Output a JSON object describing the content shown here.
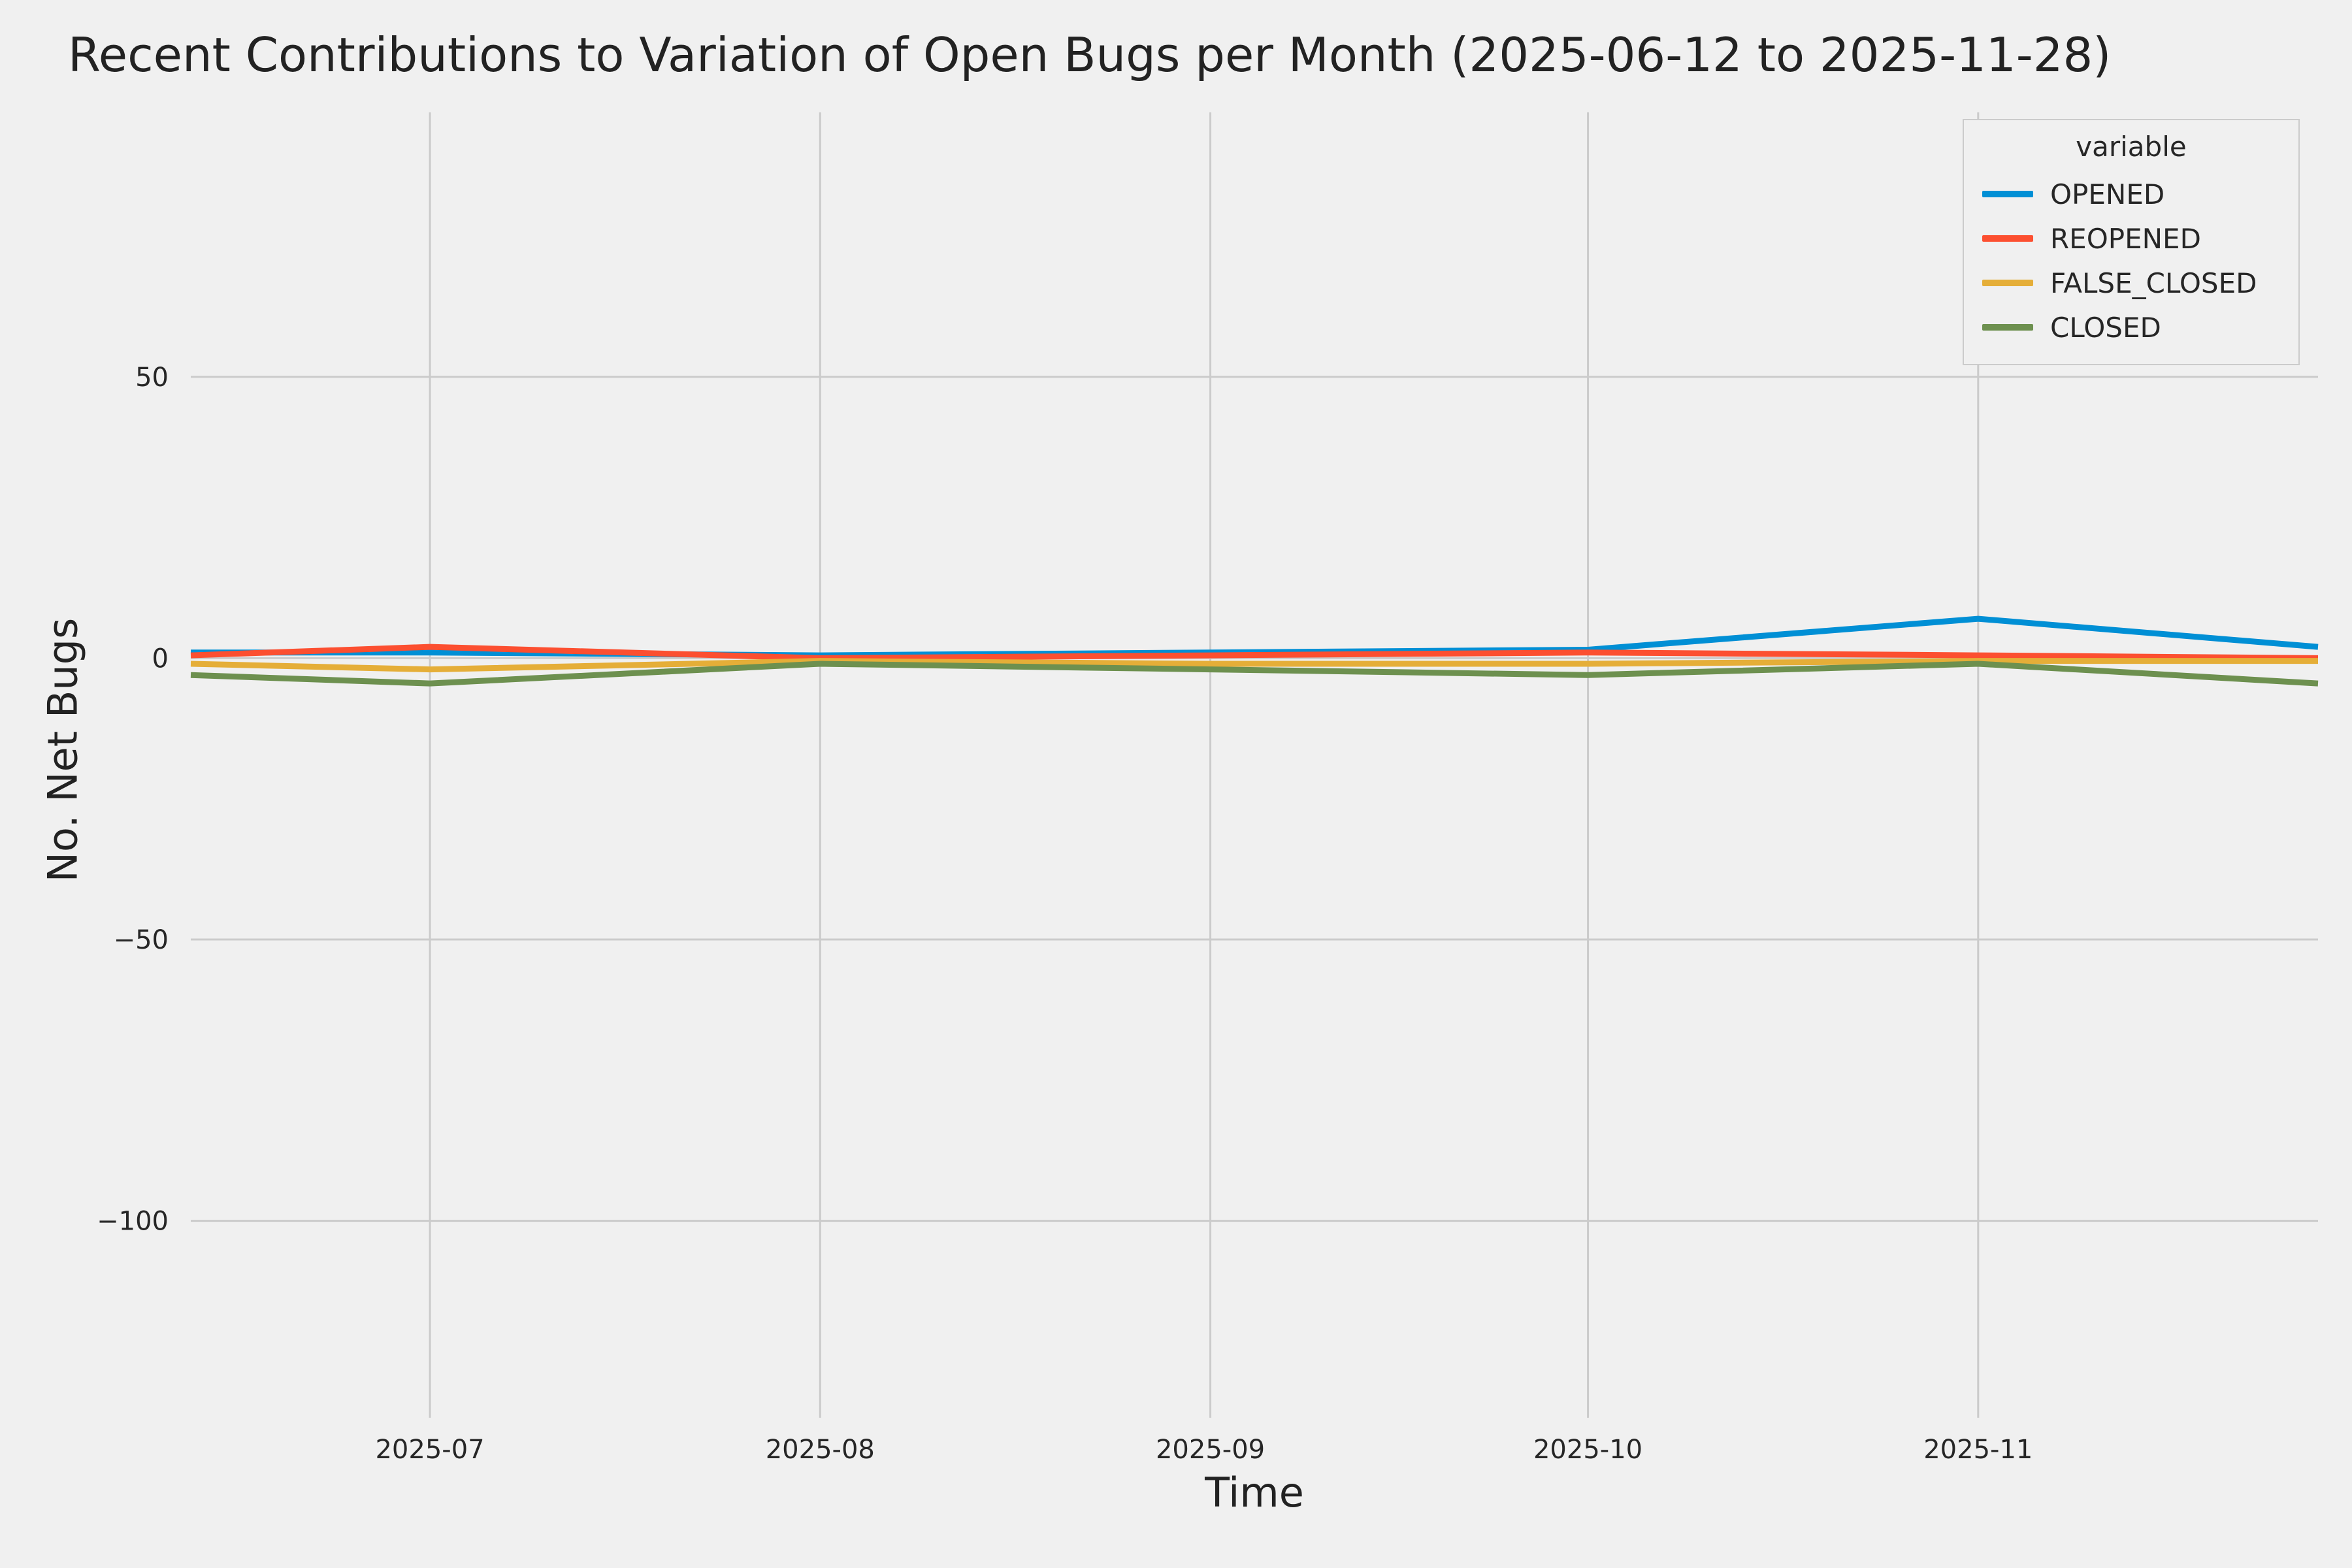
{
  "chart_data": {
    "type": "line",
    "title": "Recent Contributions to Variation of Open Bugs per Month (2025-06-12 to 2025-11-28)",
    "xlabel": "Time",
    "ylabel": "No. Net Bugs",
    "background_color": "#f0f0f0",
    "grid": true,
    "grid_color": "#cbcbcb",
    "x_days_since_start": [
      0,
      19,
      50,
      81,
      111,
      142,
      169
    ],
    "x_dates": [
      "2025-06-12",
      "2025-07-01",
      "2025-08-01",
      "2025-09-01",
      "2025-10-01",
      "2025-11-01",
      "2025-11-28"
    ],
    "xlim": [
      0,
      169
    ],
    "ylim": [
      -135,
      97
    ],
    "xticks": {
      "values": [
        19,
        50,
        81,
        111,
        142
      ],
      "labels": [
        "2025-07",
        "2025-08",
        "2025-09",
        "2025-10",
        "2025-11"
      ]
    },
    "yticks": {
      "values": [
        50,
        0,
        -50,
        -100
      ],
      "labels": [
        "50",
        "0",
        "−50",
        "−100"
      ]
    },
    "legend": {
      "title": "variable",
      "position": "upper right"
    },
    "series": [
      {
        "name": "OPENED",
        "color": "#008fd5",
        "values": [
          1,
          1,
          0.5,
          1,
          1.5,
          7,
          2
        ]
      },
      {
        "name": "REOPENED",
        "color": "#fc4f30",
        "values": [
          0.5,
          2,
          0,
          0.5,
          1,
          0.5,
          0
        ]
      },
      {
        "name": "FALSE_CLOSED",
        "color": "#e5ae38",
        "values": [
          -1,
          -2,
          -0.5,
          -1,
          -1,
          -0.5,
          -0.5
        ]
      },
      {
        "name": "CLOSED",
        "color": "#6d904f",
        "values": [
          -3,
          -4.5,
          -1,
          -2,
          -3,
          -1,
          -4.5
        ]
      }
    ]
  }
}
